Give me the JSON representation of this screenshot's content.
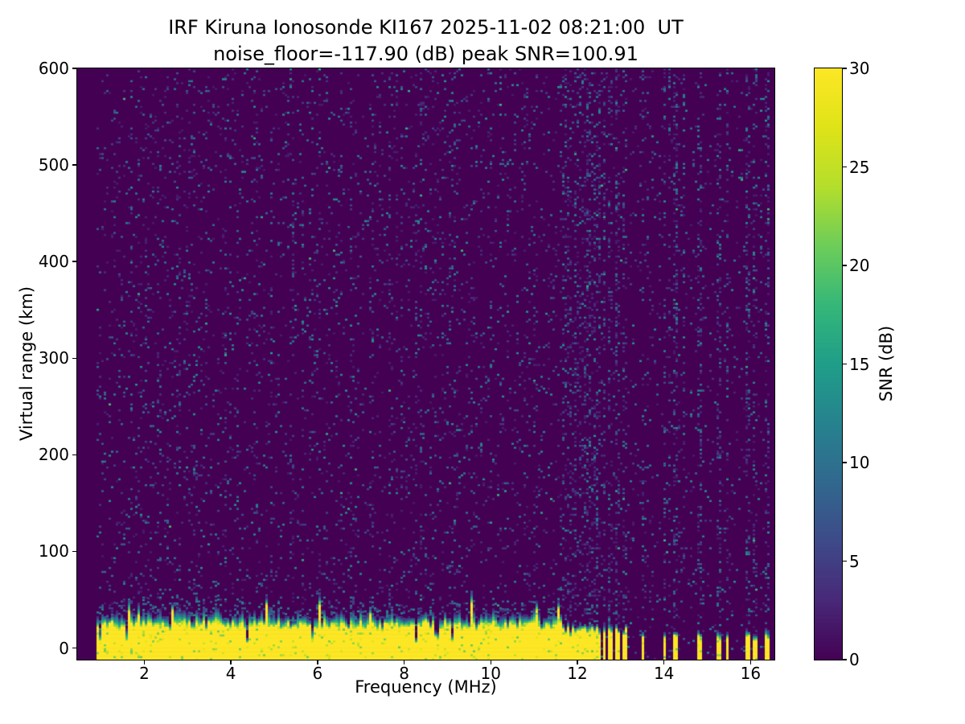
{
  "chart_data": {
    "type": "heatmap",
    "title": "IRF Kiruna Ionosonde KI167 2025-11-02 08:21:00  UT",
    "subtitle": "noise_floor=-117.90 (dB) peak SNR=100.91",
    "xlabel": "Frequency (MHz)",
    "ylabel": "Virtual range (km)",
    "colorbar_label": "SNR (dB)",
    "colormap": "viridis",
    "x_range_mhz": [
      0.45,
      16.55
    ],
    "y_range_km": [
      -12,
      600
    ],
    "x_ticks": [
      2,
      4,
      6,
      8,
      10,
      12,
      14,
      16
    ],
    "y_ticks": [
      0,
      100,
      200,
      300,
      400,
      500,
      600
    ],
    "color_range_db": [
      0,
      30
    ],
    "colorbar_ticks": [
      0,
      5,
      10,
      15,
      20,
      25,
      30
    ],
    "noise_floor_db": -117.9,
    "peak_snr_db": 100.91,
    "background_color": "#440154",
    "seed": 42,
    "signal": {
      "freq_start_mhz": 0.9,
      "freq_end_mhz": 16.42,
      "ground_echo": {
        "freq_end_mhz": 11.62,
        "band_top_km_mean": 24,
        "fringe_km_mean": 10,
        "band_snr_db": 30
      },
      "stripe_centers_mhz": [
        11.66,
        11.72,
        11.78,
        11.85,
        11.92,
        12.0,
        12.08,
        12.17,
        12.27,
        12.38,
        12.5,
        12.63,
        12.77,
        12.92,
        13.08,
        13.52,
        14.02,
        14.26,
        14.82,
        15.28,
        15.47,
        15.93,
        16.12,
        16.38
      ],
      "stripe_width_mhz": 0.09,
      "background_speckle_max_db": 14
    }
  }
}
